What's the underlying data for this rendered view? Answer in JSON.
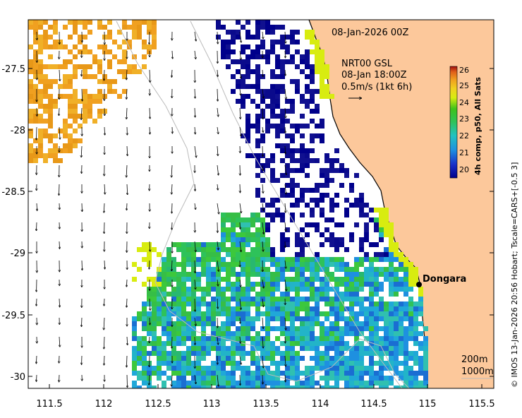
{
  "map": {
    "date_label": "08-Jan-2026 00Z",
    "current_title": "NRT00 GSL",
    "current_time": "08-Jan 18:00Z",
    "current_scale": "0.5m/s (1kt 6h)",
    "place_label": "Dongara",
    "isobath_200": "200m",
    "isobath_1000": "1000m",
    "credit": "© IMOS 13-Jan-2026 20:56 Hobart; Tscale=CARS+[-0.5 3]",
    "x_ticks": [
      "111.5",
      "112",
      "112.5",
      "113",
      "113.5",
      "114",
      "114.5",
      "115",
      "115.5"
    ],
    "y_ticks": [
      "-27.5",
      "-28",
      "-28.5",
      "-29",
      "-29.5",
      "-30"
    ],
    "colorbar": {
      "title": "4h comp, p50, All Sats",
      "ticks": [
        "26",
        "25",
        "24",
        "23",
        "22",
        "21",
        "20"
      ],
      "range": [
        19.5,
        26.3
      ]
    },
    "colors": {
      "land": "#fcc89b",
      "sea_bg": "#ffffff",
      "isobath": "#bbbbbb"
    }
  }
}
